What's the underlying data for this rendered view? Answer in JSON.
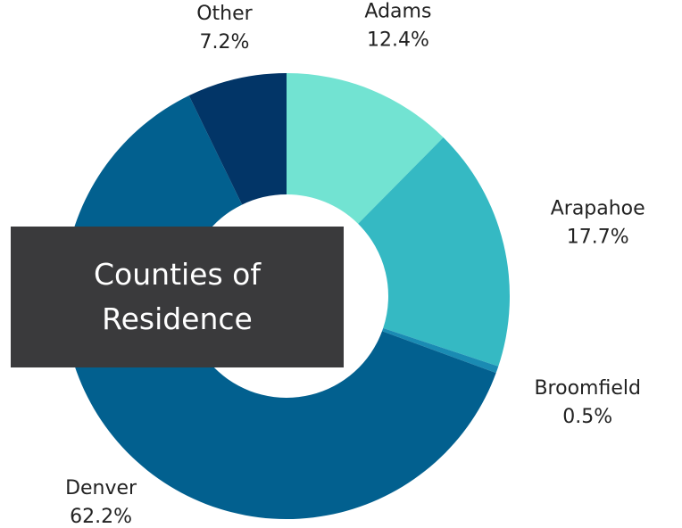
{
  "chart_data": {
    "type": "donut",
    "title": "Counties of Residence",
    "categories": [
      "Adams",
      "Arapahoe",
      "Broomfield",
      "Denver",
      "Other"
    ],
    "values": [
      12.4,
      17.7,
      0.5,
      62.2,
      7.2
    ],
    "value_labels": [
      "12.4%",
      "17.7%",
      "0.5%",
      "62.2%",
      "7.2%"
    ],
    "colors": [
      "#72e3d2",
      "#35b9c3",
      "#1a8bb3",
      "#02608f",
      "#023567"
    ]
  }
}
